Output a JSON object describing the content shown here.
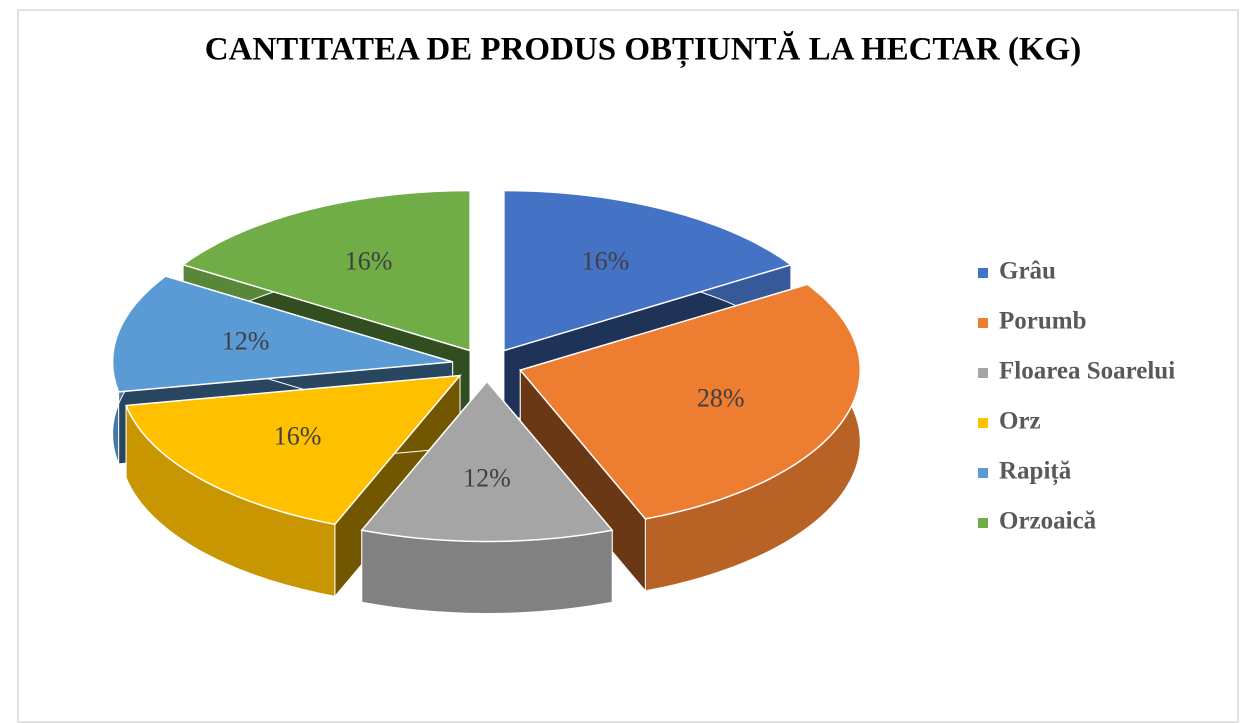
{
  "chart_data": {
    "type": "pie",
    "title": "CANTITATEA DE PRODUS OBȚIUNTĂ LA HECTAR (KG)",
    "categories": [
      "Grâu",
      "Porumb",
      "Floarea Soarelui",
      "Orz",
      "Rapiță",
      "Orzoaică"
    ],
    "values": [
      16,
      28,
      12,
      16,
      12,
      16
    ],
    "value_labels": [
      "16%",
      "28%",
      "12%",
      "16%",
      "12%",
      "16%"
    ],
    "colors": [
      "#4472c4",
      "#ed7d31",
      "#a5a5a5",
      "#ffc000",
      "#5b9bd5",
      "#70ad47"
    ],
    "legend": "right"
  }
}
